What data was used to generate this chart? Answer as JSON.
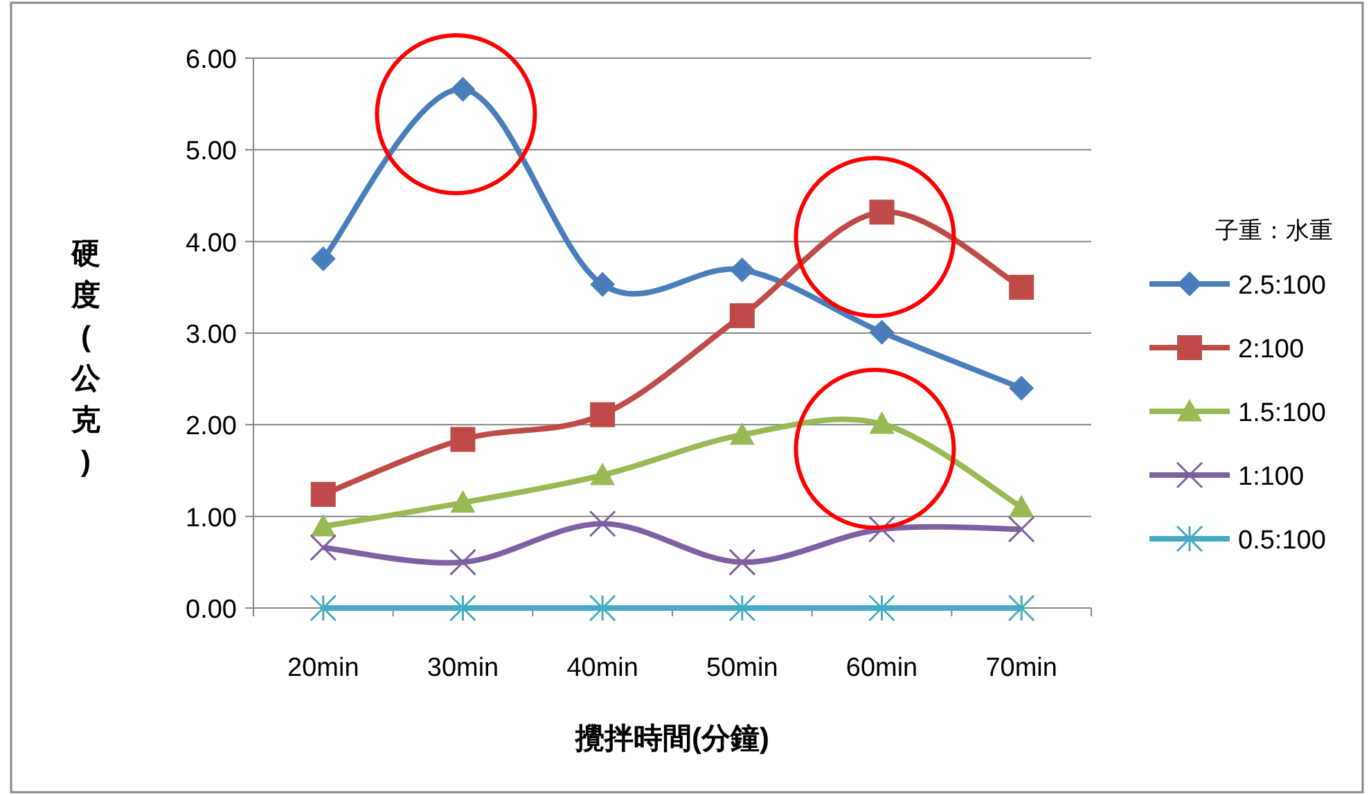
{
  "chart_data": {
    "type": "line",
    "xlabel": "攪拌時間(分鐘)",
    "ylabel": "硬度(公克)",
    "legend_title": "子重：水重",
    "legend": "right",
    "grid": "y",
    "line_style": "solid",
    "categories": [
      "20min",
      "30min",
      "40min",
      "50min",
      "60min",
      "70min"
    ],
    "ylim": [
      0,
      6
    ],
    "yticks": [
      {
        "value": 0,
        "label": "0.00"
      },
      {
        "value": 1,
        "label": "1.00"
      },
      {
        "value": 2,
        "label": "2.00"
      },
      {
        "value": 3,
        "label": "3.00"
      },
      {
        "value": 4,
        "label": "4.00"
      },
      {
        "value": 5,
        "label": "5.00"
      },
      {
        "value": 6,
        "label": "6.00"
      }
    ],
    "series": [
      {
        "name": "2.5:100",
        "color": "#4a7ebb",
        "marker": "diamond",
        "values": [
          3.81,
          5.66,
          3.53,
          3.69,
          3.01,
          2.4
        ]
      },
      {
        "name": "2:100",
        "color": "#be4b48",
        "marker": "square",
        "values": [
          1.24,
          1.84,
          2.11,
          3.19,
          4.32,
          3.5
        ]
      },
      {
        "name": "1.5:100",
        "color": "#98b954",
        "marker": "triangle",
        "values": [
          0.89,
          1.15,
          1.45,
          1.89,
          2.01,
          1.1
        ]
      },
      {
        "name": "1:100",
        "color": "#7d60a0",
        "marker": "cross",
        "values": [
          0.66,
          0.5,
          0.92,
          0.5,
          0.86,
          0.86
        ]
      },
      {
        "name": "0.5:100",
        "color": "#46aac5",
        "marker": "cross",
        "values": [
          0,
          0,
          0,
          0,
          0,
          0
        ]
      }
    ]
  }
}
